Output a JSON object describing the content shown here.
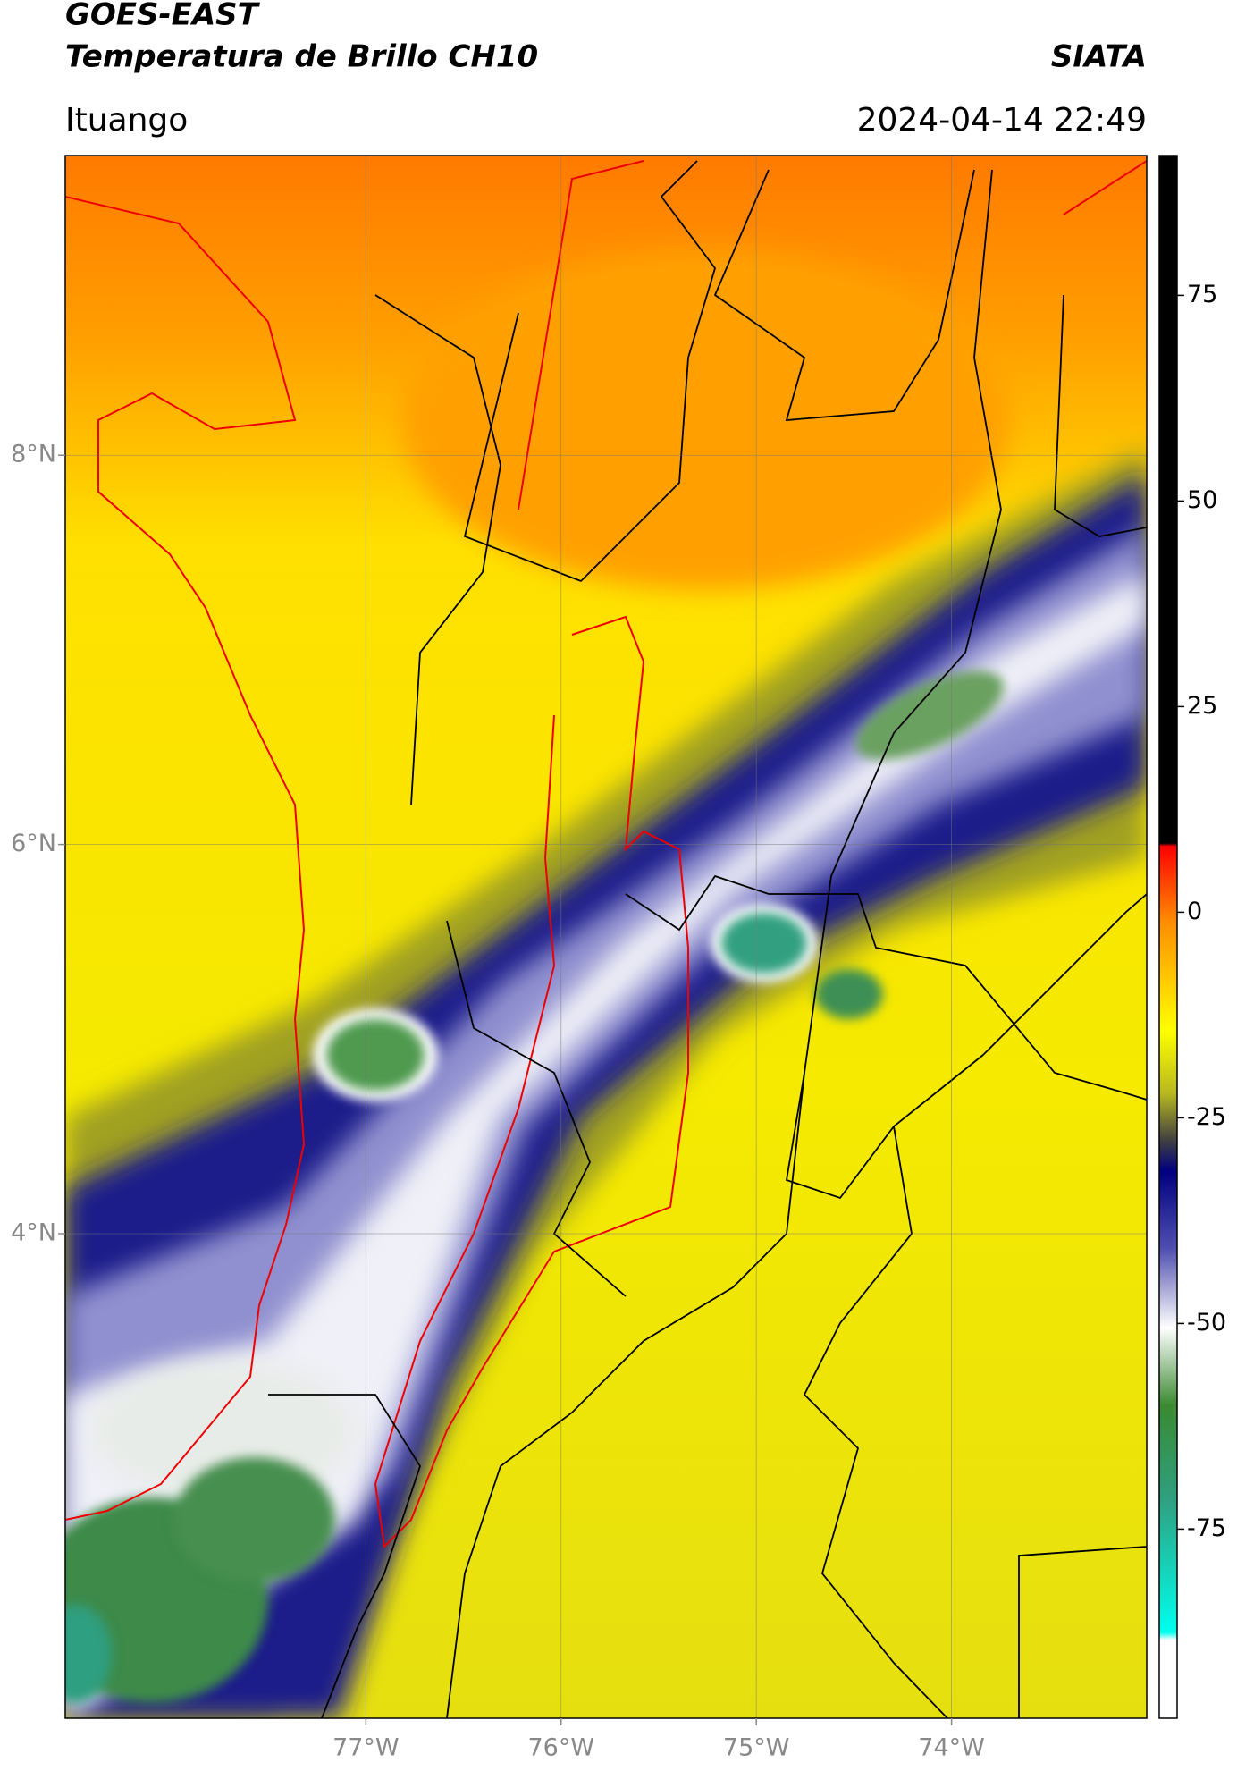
{
  "header": {
    "title": "GOES-EAST",
    "subtitle": "Temperatura de Brillo CH10",
    "brand": "SIATA",
    "location": "Ituango",
    "datetime": "2024-04-14 22:49"
  },
  "map": {
    "type": "map",
    "xlim": [
      -78.54,
      -73.0
    ],
    "ylim": [
      1.51,
      9.54
    ],
    "xticks": [
      {
        "value": -77,
        "label": "77°W"
      },
      {
        "value": -76,
        "label": "76°W"
      },
      {
        "value": -75,
        "label": "75°W"
      },
      {
        "value": -74,
        "label": "74°W"
      }
    ],
    "yticks": [
      {
        "value": 4,
        "label": "4°N"
      },
      {
        "value": 6,
        "label": "6°N"
      },
      {
        "value": 8,
        "label": "8°N"
      }
    ],
    "grid": true
  },
  "colorbar": {
    "lim": [
      -98,
      92
    ],
    "ticks": [
      -75,
      -50,
      -25,
      0,
      25,
      50,
      75
    ]
  }
}
